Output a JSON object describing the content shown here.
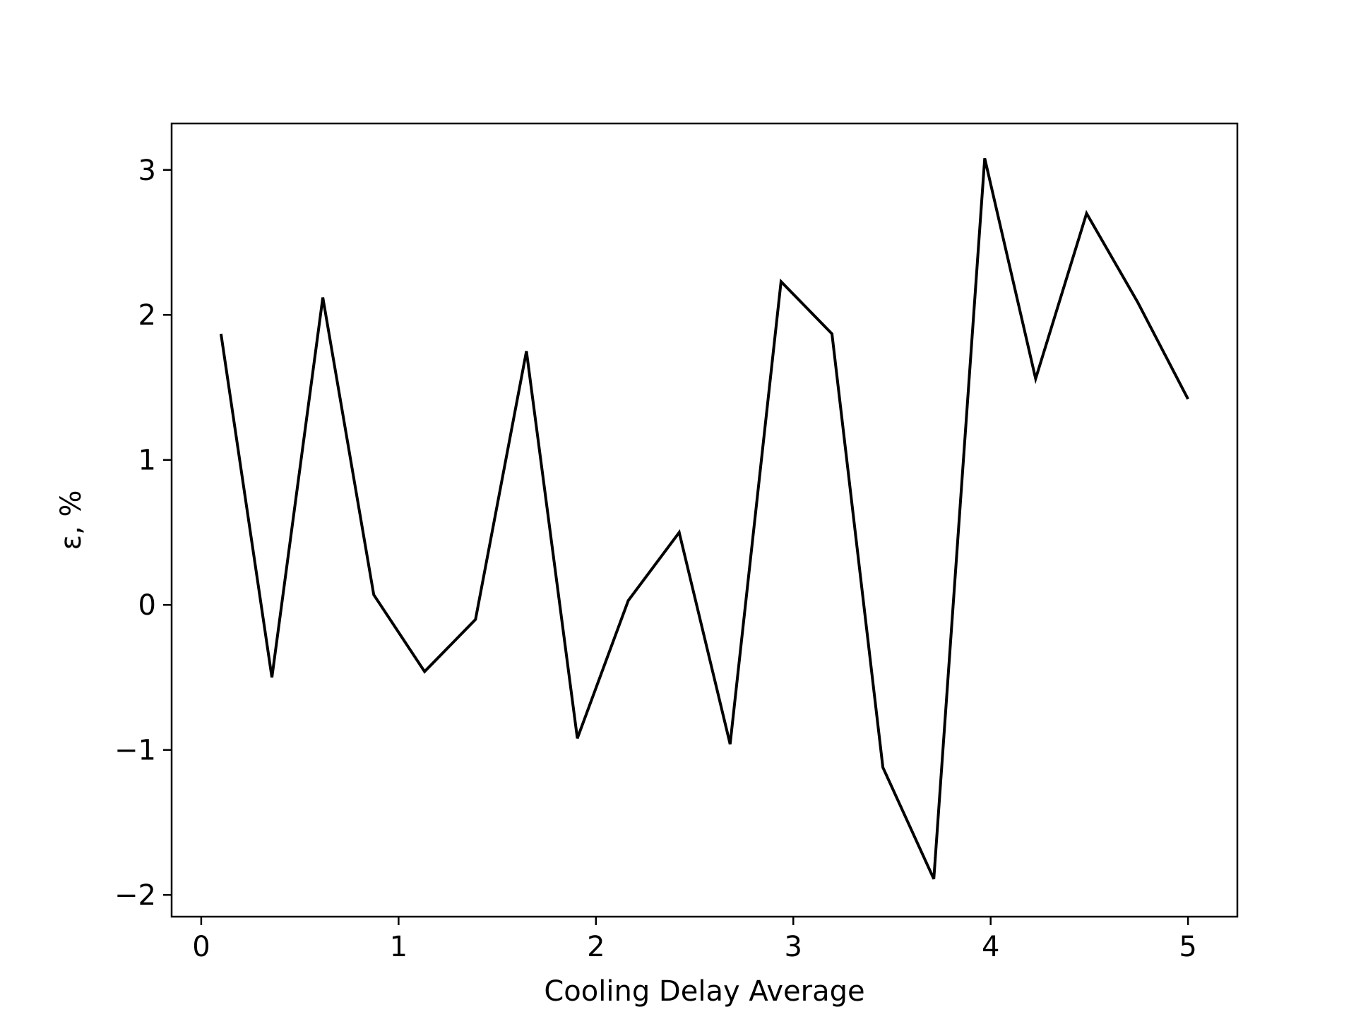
{
  "chart_data": {
    "type": "line",
    "title": "",
    "xlabel": "Cooling Delay Average",
    "ylabel": "ε, %",
    "xlim": [
      -0.15,
      5.25
    ],
    "ylim": [
      -2.15,
      3.32
    ],
    "xticks": [
      0,
      1,
      2,
      3,
      4,
      5
    ],
    "xtick_labels": [
      "0",
      "1",
      "2",
      "3",
      "4",
      "5"
    ],
    "yticks": [
      -2,
      -1,
      0,
      1,
      2,
      3
    ],
    "ytick_labels": [
      "−2",
      "−1",
      "0",
      "1",
      "2",
      "3"
    ],
    "grid": false,
    "legend": "none",
    "series": [
      {
        "color": "#000000",
        "x": [
          0.1,
          0.358,
          0.616,
          0.874,
          1.132,
          1.39,
          1.648,
          1.906,
          2.164,
          2.422,
          2.68,
          2.938,
          3.196,
          3.454,
          3.712,
          3.97,
          4.228,
          4.486,
          4.744,
          5.0
        ],
        "y": [
          1.87,
          -0.5,
          2.12,
          0.07,
          -0.46,
          -0.1,
          1.75,
          -0.92,
          0.03,
          0.5,
          -0.96,
          2.23,
          1.87,
          -1.12,
          -1.89,
          3.08,
          1.56,
          2.7,
          2.09,
          1.42
        ]
      }
    ]
  }
}
